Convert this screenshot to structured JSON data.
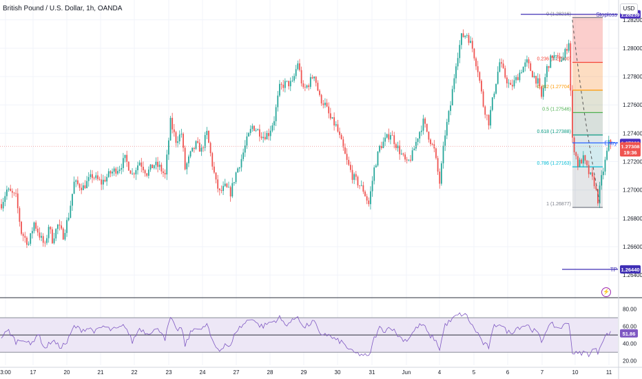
{
  "header": {
    "title": "British Pound / U.S. Dollar, 1h, OANDA",
    "currency_button": "USD"
  },
  "colors": {
    "up": "#26a69a",
    "down": "#ef5350",
    "rsi_line": "#7e57c2",
    "rsi_band": "#ede7f6",
    "stop_tp_line": "#3f2fb5",
    "price_line": "#ef9a9a"
  },
  "chart_data": {
    "type": "candlestick",
    "price_axis": {
      "ticks": [
        "1.28200",
        "1.28000",
        "1.27800",
        "1.27600",
        "1.27400",
        "1.27200",
        "1.27000",
        "1.26800",
        "1.26600",
        "1.26400"
      ],
      "tick_values": [
        1.282,
        1.28,
        1.278,
        1.276,
        1.274,
        1.272,
        1.27,
        1.268,
        1.266,
        1.264
      ]
    },
    "x_axis": {
      "ticks": [
        "3:00",
        "17",
        "20",
        "21",
        "22",
        "23",
        "24",
        "27",
        "28",
        "29",
        "30",
        "31",
        "Jun",
        "4",
        "5",
        "6",
        "7",
        "10",
        "11"
      ]
    },
    "price_path": [
      [
        0,
        1.269
      ],
      [
        3,
        1.27
      ],
      [
        8,
        1.2695
      ],
      [
        11,
        1.267
      ],
      [
        15,
        1.2662
      ],
      [
        18,
        1.2677
      ],
      [
        21,
        1.2668
      ],
      [
        24,
        1.266
      ],
      [
        26,
        1.2675
      ],
      [
        28,
        1.2665
      ],
      [
        31,
        1.2675
      ],
      [
        34,
        1.2668
      ],
      [
        37,
        1.2682
      ],
      [
        40,
        1.2705
      ],
      [
        45,
        1.2702
      ],
      [
        50,
        1.271
      ],
      [
        55,
        1.2705
      ],
      [
        60,
        1.2712
      ],
      [
        65,
        1.2716
      ],
      [
        68,
        1.2722
      ],
      [
        72,
        1.2711
      ],
      [
        76,
        1.272
      ],
      [
        80,
        1.2712
      ],
      [
        84,
        1.2718
      ],
      [
        87,
        1.2716
      ],
      [
        90,
        1.271
      ],
      [
        93,
        1.2748
      ],
      [
        96,
        1.2735
      ],
      [
        99,
        1.274
      ],
      [
        101,
        1.2715
      ],
      [
        104,
        1.2725
      ],
      [
        107,
        1.2732
      ],
      [
        110,
        1.2728
      ],
      [
        113,
        1.274
      ],
      [
        116,
        1.2718
      ],
      [
        118,
        1.2705
      ],
      [
        120,
        1.2698
      ],
      [
        123,
        1.2702
      ],
      [
        126,
        1.2698
      ],
      [
        129,
        1.2712
      ],
      [
        132,
        1.2722
      ],
      [
        135,
        1.2735
      ],
      [
        138,
        1.2745
      ],
      [
        141,
        1.2742
      ],
      [
        144,
        1.2738
      ],
      [
        147,
        1.274
      ],
      [
        150,
        1.275
      ],
      [
        153,
        1.2772
      ],
      [
        156,
        1.2775
      ],
      [
        160,
        1.2775
      ],
      [
        163,
        1.279
      ],
      [
        166,
        1.277
      ],
      [
        169,
        1.2775
      ],
      [
        172,
        1.2782
      ],
      [
        175,
        1.2765
      ],
      [
        178,
        1.276
      ],
      [
        181,
        1.275
      ],
      [
        184,
        1.2745
      ],
      [
        187,
        1.2733
      ],
      [
        190,
        1.272
      ],
      [
        193,
        1.271
      ],
      [
        196,
        1.2705
      ],
      [
        199,
        1.27
      ],
      [
        202,
        1.269
      ],
      [
        205,
        1.2715
      ],
      [
        208,
        1.273
      ],
      [
        211,
        1.2735
      ],
      [
        214,
        1.274
      ],
      [
        217,
        1.2732
      ],
      [
        220,
        1.2725
      ],
      [
        223,
        1.2718
      ],
      [
        226,
        1.2725
      ],
      [
        229,
        1.2738
      ],
      [
        232,
        1.2748
      ],
      [
        235,
        1.2738
      ],
      [
        238,
        1.2728
      ],
      [
        241,
        1.2705
      ],
      [
        244,
        1.274
      ],
      [
        247,
        1.276
      ],
      [
        250,
        1.279
      ],
      [
        253,
        1.2808
      ],
      [
        256,
        1.281
      ],
      [
        259,
        1.28
      ],
      [
        262,
        1.2785
      ],
      [
        265,
        1.276
      ],
      [
        268,
        1.2748
      ],
      [
        271,
        1.277
      ],
      [
        274,
        1.279
      ],
      [
        277,
        1.278
      ],
      [
        280,
        1.2772
      ],
      [
        283,
        1.2778
      ],
      [
        286,
        1.2785
      ],
      [
        289,
        1.279
      ],
      [
        292,
        1.2782
      ],
      [
        295,
        1.2776
      ],
      [
        297,
        1.2765
      ],
      [
        300,
        1.2786
      ],
      [
        303,
        1.2795
      ],
      [
        306,
        1.2792
      ],
      [
        309,
        1.2793
      ],
      [
        312,
        1.2805
      ],
      [
        314,
        1.2735
      ],
      [
        317,
        1.2718
      ],
      [
        320,
        1.2722
      ],
      [
        323,
        1.2712
      ],
      [
        326,
        1.2705
      ],
      [
        328,
        1.2693
      ],
      [
        330,
        1.2708
      ],
      [
        332,
        1.272
      ],
      [
        334,
        1.2733
      ]
    ],
    "current_price": 1.27308,
    "levels": [
      {
        "name": "Stoploss",
        "value": 1.28239
      },
      {
        "name": "Entry",
        "value": 1.27332
      },
      {
        "name": "TP",
        "value": 1.2644
      }
    ],
    "axis_labels": [
      {
        "text": "1.28239",
        "value": 1.28239,
        "color": "#4a2fbf"
      },
      {
        "text": "1.27332",
        "value": 1.27332,
        "color": "#4a2fbf"
      },
      {
        "text": "1.27308",
        "value": 1.27308,
        "color": "#ef5350"
      },
      {
        "text": "19:36",
        "value": 1.27265,
        "color": "#ef5350"
      },
      {
        "text": "1.26440",
        "value": 1.2644,
        "color": "#3f2fb5"
      }
    ],
    "fibonacci": [
      {
        "label": "0 (1.28216)",
        "value": 1.28216,
        "color": "#787b86"
      },
      {
        "label": "0.236 (1.27900)",
        "value": 1.279,
        "color": "#f44336"
      },
      {
        "label": "0.382 (1.27704)",
        "value": 1.27704,
        "color": "#ff9800"
      },
      {
        "label": "0.5 (1.27546)",
        "value": 1.27546,
        "color": "#4caf50"
      },
      {
        "label": "0.618 (1.27388)",
        "value": 1.27388,
        "color": "#089981"
      },
      {
        "label": "0.786 (1.27163)",
        "value": 1.27163,
        "color": "#00bcd4"
      },
      {
        "label": "1 (1.26877)",
        "value": 1.26877,
        "color": "#787b86"
      }
    ],
    "rsi": {
      "current": 51.86,
      "ticks": [
        "80.00",
        "60.00",
        "40.00",
        "20.00"
      ],
      "tick_values": [
        80,
        60,
        40,
        20
      ],
      "upper_band": 70,
      "lower_band": 30,
      "middle": 50,
      "series": [
        [
          0,
          48
        ],
        [
          4,
          55
        ],
        [
          8,
          42
        ],
        [
          12,
          46
        ],
        [
          16,
          38
        ],
        [
          20,
          52
        ],
        [
          24,
          34
        ],
        [
          28,
          44
        ],
        [
          32,
          36
        ],
        [
          36,
          41
        ],
        [
          40,
          60
        ],
        [
          44,
          56
        ],
        [
          48,
          58
        ],
        [
          52,
          54
        ],
        [
          56,
          60
        ],
        [
          60,
          56
        ],
        [
          64,
          57
        ],
        [
          68,
          61
        ],
        [
          72,
          42
        ],
        [
          76,
          58
        ],
        [
          80,
          52
        ],
        [
          84,
          56
        ],
        [
          88,
          55
        ],
        [
          90,
          46
        ],
        [
          93,
          70
        ],
        [
          96,
          56
        ],
        [
          99,
          58
        ],
        [
          101,
          38
        ],
        [
          104,
          52
        ],
        [
          107,
          60
        ],
        [
          110,
          55
        ],
        [
          113,
          63
        ],
        [
          116,
          42
        ],
        [
          118,
          36
        ],
        [
          120,
          32
        ],
        [
          123,
          40
        ],
        [
          126,
          36
        ],
        [
          129,
          55
        ],
        [
          132,
          60
        ],
        [
          135,
          66
        ],
        [
          138,
          70
        ],
        [
          141,
          62
        ],
        [
          144,
          60
        ],
        [
          147,
          64
        ],
        [
          150,
          66
        ],
        [
          153,
          70
        ],
        [
          156,
          62
        ],
        [
          160,
          66
        ],
        [
          163,
          73
        ],
        [
          166,
          58
        ],
        [
          169,
          62
        ],
        [
          172,
          66
        ],
        [
          175,
          50
        ],
        [
          178,
          52
        ],
        [
          181,
          48
        ],
        [
          184,
          44
        ],
        [
          187,
          42
        ],
        [
          190,
          36
        ],
        [
          193,
          30
        ],
        [
          196,
          28
        ],
        [
          199,
          27
        ],
        [
          202,
          24
        ],
        [
          205,
          46
        ],
        [
          208,
          58
        ],
        [
          211,
          55
        ],
        [
          214,
          60
        ],
        [
          217,
          52
        ],
        [
          220,
          46
        ],
        [
          223,
          44
        ],
        [
          226,
          52
        ],
        [
          229,
          60
        ],
        [
          232,
          62
        ],
        [
          235,
          50
        ],
        [
          238,
          46
        ],
        [
          241,
          34
        ],
        [
          244,
          62
        ],
        [
          247,
          66
        ],
        [
          250,
          72
        ],
        [
          253,
          74
        ],
        [
          256,
          72
        ],
        [
          259,
          60
        ],
        [
          262,
          52
        ],
        [
          265,
          40
        ],
        [
          268,
          36
        ],
        [
          271,
          60
        ],
        [
          274,
          64
        ],
        [
          277,
          56
        ],
        [
          280,
          52
        ],
        [
          283,
          58
        ],
        [
          286,
          60
        ],
        [
          289,
          62
        ],
        [
          292,
          56
        ],
        [
          295,
          52
        ],
        [
          297,
          42
        ],
        [
          300,
          58
        ],
        [
          303,
          62
        ],
        [
          306,
          58
        ],
        [
          309,
          60
        ],
        [
          312,
          66
        ],
        [
          314,
          30
        ],
        [
          317,
          28
        ],
        [
          320,
          30
        ],
        [
          323,
          28
        ],
        [
          326,
          34
        ],
        [
          328,
          30
        ],
        [
          330,
          42
        ],
        [
          332,
          48
        ],
        [
          334,
          52
        ]
      ]
    }
  }
}
